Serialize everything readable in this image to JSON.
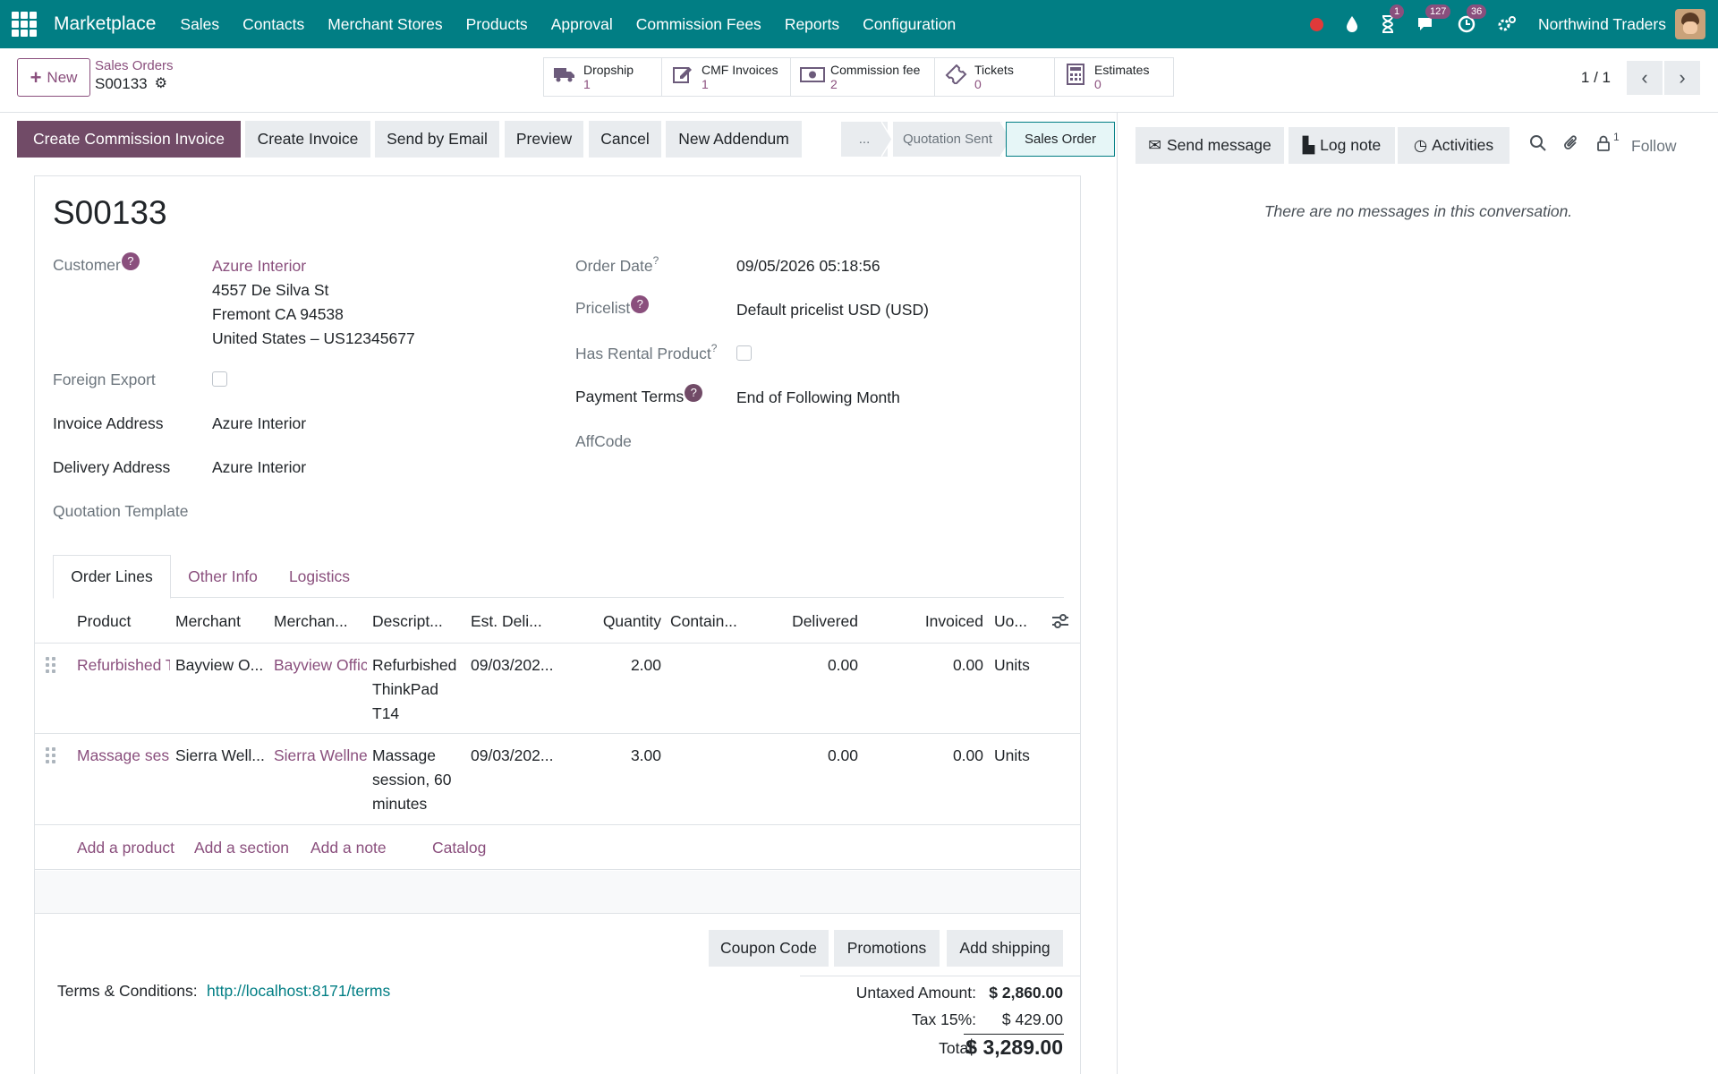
{
  "navbar": {
    "brand": "Marketplace",
    "menu": [
      "Sales",
      "Contacts",
      "Merchant Stores",
      "Products",
      "Approval",
      "Commission Fees",
      "Reports",
      "Configuration"
    ],
    "badges": {
      "activities": "1",
      "messages": "127",
      "clock": "36"
    },
    "company": "Northwind Traders",
    "accent_color": "#017e84"
  },
  "control": {
    "new_label": "New",
    "breadcrumb_parent": "Sales Orders",
    "breadcrumb_current": "S00133",
    "smart_buttons": [
      {
        "label": "Dropship",
        "value": "1",
        "icon": "truck-icon"
      },
      {
        "label": "CMF Invoices",
        "value": "1",
        "icon": "edit-icon"
      },
      {
        "label": "Commission fee",
        "value": "2",
        "icon": "money-icon"
      },
      {
        "label": "Tickets",
        "value": "0",
        "icon": "ticket-icon"
      },
      {
        "label": "Estimates",
        "value": "0",
        "icon": "calculator-icon"
      }
    ],
    "pager": "1 / 1"
  },
  "actions": {
    "create_commission_invoice": "Create Commission Invoice",
    "create_invoice": "Create Invoice",
    "send_by_email": "Send by Email",
    "preview": "Preview",
    "cancel": "Cancel",
    "new_addendum": "New Addendum",
    "stage_more": "...",
    "stage_quotation_sent": "Quotation Sent",
    "stage_sales_order": "Sales Order"
  },
  "form": {
    "title": "S00133",
    "customer_label": "Customer",
    "customer_name": "Azure Interior",
    "customer_address_1": "4557 De Silva St",
    "customer_address_2": "Fremont CA 94538",
    "customer_address_3": "United States – US12345677",
    "foreign_export_label": "Foreign Export",
    "invoice_address_label": "Invoice Address",
    "invoice_address": "Azure Interior",
    "delivery_address_label": "Delivery Address",
    "delivery_address": "Azure Interior",
    "quotation_template_label": "Quotation Template",
    "order_date_label": "Order Date",
    "order_date": "09/05/2026 05:18:56",
    "pricelist_label": "Pricelist",
    "pricelist": "Default pricelist USD (USD)",
    "has_rental_label": "Has Rental Product",
    "payment_terms_label": "Payment Terms",
    "payment_terms": "End of Following Month",
    "affcode_label": "AffCode"
  },
  "tabs": [
    "Order Lines",
    "Other Info",
    "Logistics"
  ],
  "table": {
    "headers": [
      "Product",
      "Merchant",
      "Merchan...",
      "Descript...",
      "Est. Deli...",
      "Quantity",
      "Contain...",
      "Delivered",
      "Invoiced",
      "Uo..."
    ],
    "rows": [
      {
        "product": "Refurbished T",
        "merchant": "Bayview O...",
        "merchant_store": "Bayview Offic",
        "desc_1": "Refurbished",
        "desc_2": "ThinkPad",
        "desc_3": "T14",
        "est_delivery": "09/03/202...",
        "quantity": "2.00",
        "delivered": "0.00",
        "invoiced": "0.00",
        "uom": "Units"
      },
      {
        "product": "Massage ses",
        "merchant": "Sierra Well...",
        "merchant_store": "Sierra Wellne",
        "desc_1": "Massage",
        "desc_2": "session, 60",
        "desc_3": "minutes",
        "est_delivery": "09/03/202...",
        "quantity": "3.00",
        "delivered": "0.00",
        "invoiced": "0.00",
        "uom": "Units"
      }
    ],
    "add_product": "Add a product",
    "add_section": "Add a section",
    "add_note": "Add a note",
    "catalog": "Catalog"
  },
  "footer": {
    "coupon_code": "Coupon Code",
    "promotions": "Promotions",
    "add_shipping": "Add shipping",
    "terms_label": "Terms & Conditions:",
    "terms_link": "http://localhost:8171/terms",
    "untaxed_label": "Untaxed Amount:",
    "untaxed_value": "$ 2,860.00",
    "tax_label": "Tax 15%:",
    "tax_value": "$ 429.00",
    "total_label": "Total:",
    "total_value": "$ 3,289.00"
  },
  "chatter": {
    "send_message": "Send message",
    "log_note": "Log note",
    "activities": "Activities",
    "followers_count": "1",
    "follow": "Follow",
    "empty": "There are no messages in this conversation."
  }
}
